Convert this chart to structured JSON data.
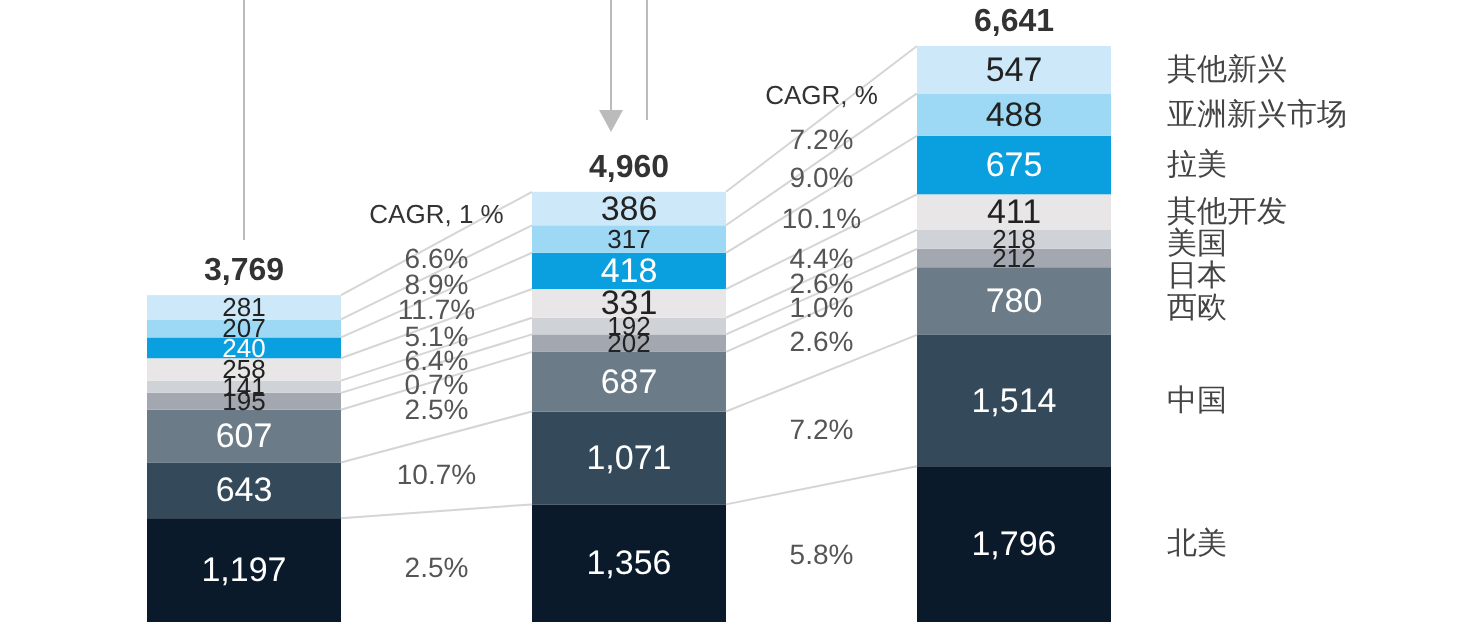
{
  "chart_data": {
    "type": "bar",
    "stacked": true,
    "categories": [
      null,
      null,
      null
    ],
    "series": [
      {
        "name": "北美",
        "color": "#0b1a2a",
        "values": [
          1197,
          1356,
          1796
        ],
        "value_labels": [
          "1,197",
          "1,356",
          "1,796"
        ]
      },
      {
        "name": "中国",
        "color": "#34495a",
        "values": [
          643,
          1071,
          1514
        ],
        "value_labels": [
          "643",
          "1,071",
          "1,514"
        ]
      },
      {
        "name": "西欧",
        "color": "#6b7b87",
        "values": [
          607,
          687,
          780
        ],
        "value_labels": [
          "607",
          "687",
          "780"
        ]
      },
      {
        "name": "日本",
        "color": "#a3a8b0",
        "values": [
          195,
          202,
          212
        ],
        "value_labels": [
          "195",
          "202",
          "212"
        ]
      },
      {
        "name": "美国",
        "color": "#cfd3d8",
        "values": [
          141,
          192,
          218
        ],
        "value_labels": [
          "141",
          "192",
          "218"
        ]
      },
      {
        "name": "其他开发",
        "color": "#e8e6e6",
        "values": [
          258,
          331,
          411
        ],
        "value_labels": [
          "258",
          "331",
          "411"
        ]
      },
      {
        "name": "拉美",
        "color": "#0aa0e0",
        "values": [
          240,
          418,
          675
        ],
        "value_labels": [
          "240",
          "418",
          "675"
        ]
      },
      {
        "name": "亚洲新兴市场",
        "color": "#9dd8f5",
        "values": [
          207,
          317,
          488
        ],
        "value_labels": [
          "207",
          "317",
          "488"
        ]
      },
      {
        "name": "其他新兴",
        "color": "#cde9f9",
        "values": [
          281,
          386,
          547
        ],
        "value_labels": [
          "281",
          "386",
          "547"
        ]
      }
    ],
    "totals": [
      "3,769",
      "4,960",
      "6,641"
    ],
    "legend": "right",
    "annotations": [
      "CAGR, 1 %",
      "CAGR, %",
      "2.5%",
      "10.7%",
      "2.5%",
      "0.7%",
      "6.4%",
      "5.1%",
      "11.7%",
      "8.9%",
      "6.6%",
      "5.8%",
      "7.2%",
      "2.6%",
      "1.0%",
      "2.6%",
      "4.4%",
      "10.1%",
      "9.0%",
      "7.2%"
    ]
  }
}
